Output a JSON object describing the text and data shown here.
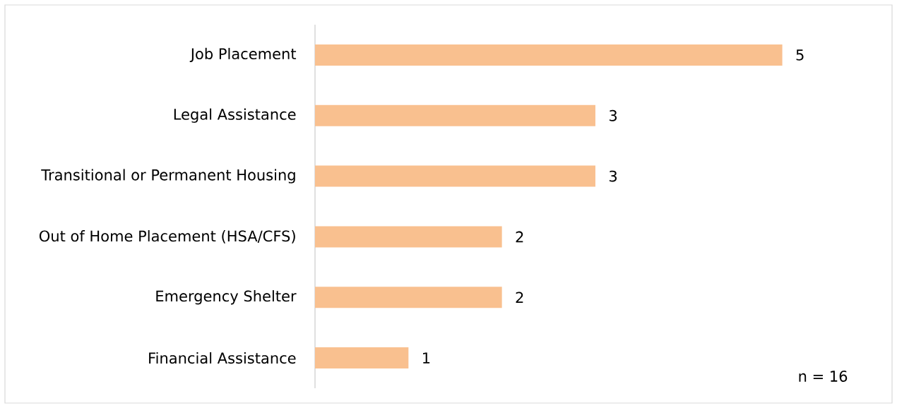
{
  "chart_data": {
    "type": "bar",
    "orientation": "horizontal",
    "categories": [
      "Job Placement",
      "Legal Assistance",
      "Transitional or Permanent Housing",
      "Out of Home Placement (HSA/CFS)",
      "Emergency Shelter",
      "Financial Assistance"
    ],
    "values": [
      5,
      3,
      3,
      2,
      2,
      1
    ],
    "color": "#f9c08f",
    "data_labels": true,
    "annotations": [
      "n = 16"
    ]
  }
}
